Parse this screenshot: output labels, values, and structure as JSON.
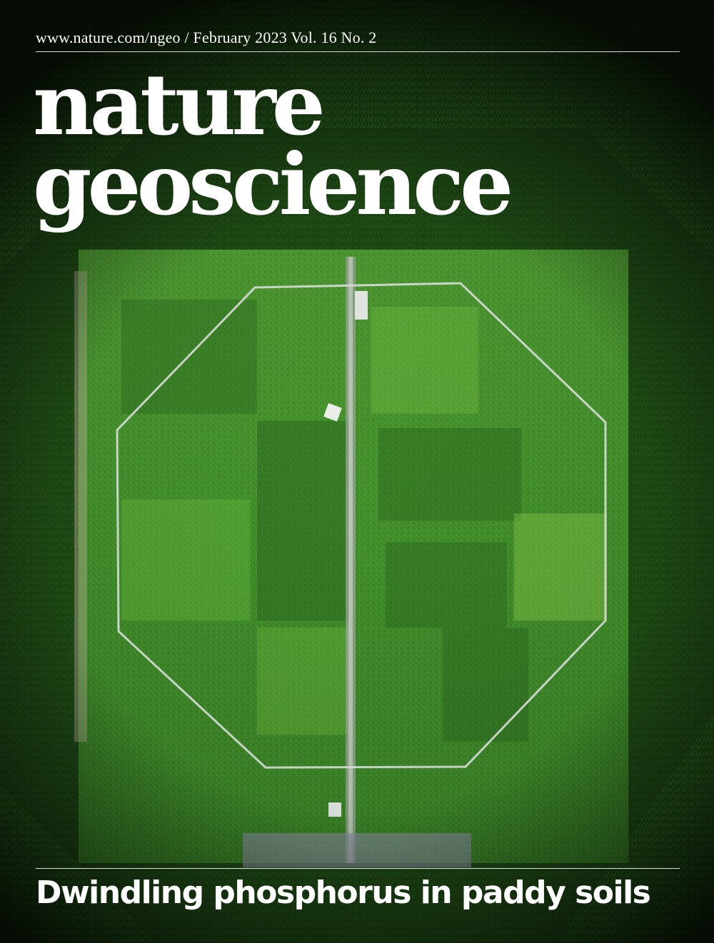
{
  "cover": {
    "issue_line": "www.nature.com/ngeo / February 2023 Vol. 16 No. 2",
    "title_line_1": "nature",
    "title_line_2": "geoscience",
    "headline": "Dwindling phosphorus in paddy soils"
  },
  "colors": {
    "text": "#ffffff",
    "field_green": "#3f8e2a",
    "bright_green": "#8cc63f",
    "dark_green": "#0b2410"
  },
  "image": {
    "description_icon": "aerial-rice-field-photo"
  }
}
